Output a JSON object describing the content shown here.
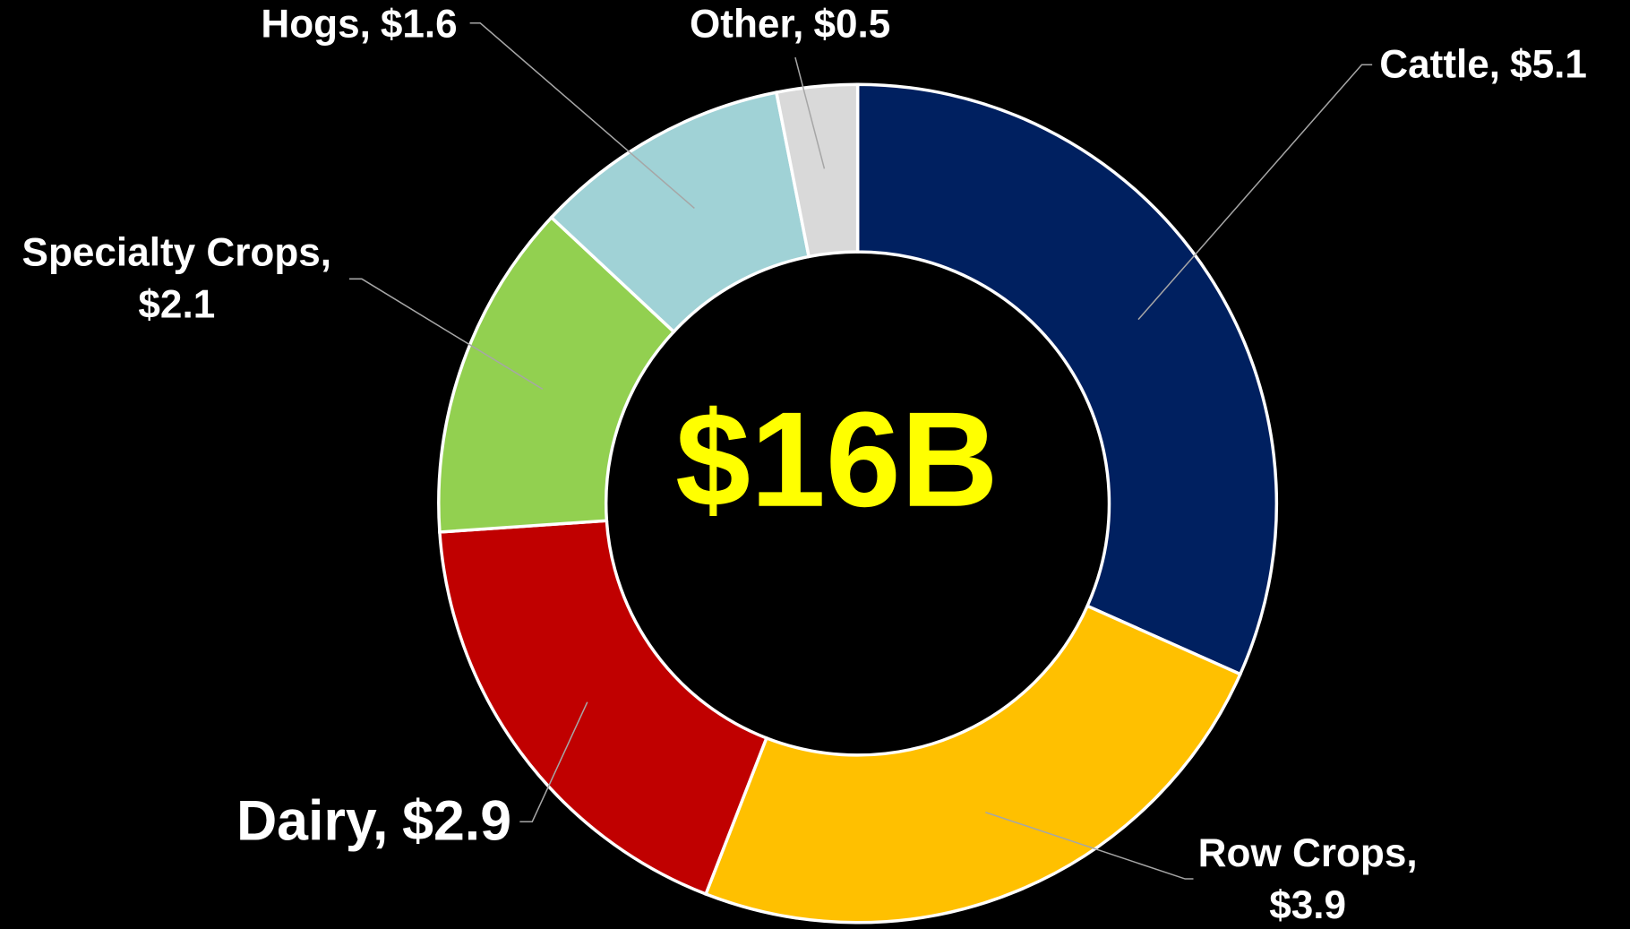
{
  "chart_data": {
    "type": "donut",
    "center_label": "$16B",
    "categories": [
      "Cattle,",
      "Row Crops,",
      "Dairy,",
      "Specialty Crops,",
      "Hogs,",
      "Other,"
    ],
    "values": [
      5.1,
      3.9,
      2.9,
      2.1,
      1.6,
      0.5
    ],
    "value_labels": [
      "$5.1",
      "$3.9",
      "$2.9",
      "$2.1",
      "$1.6",
      "$0.5"
    ],
    "colors": [
      "#002060",
      "#ffc000",
      "#c00000",
      "#92d050",
      "#a0d2d6",
      "#d9d9d9"
    ]
  }
}
